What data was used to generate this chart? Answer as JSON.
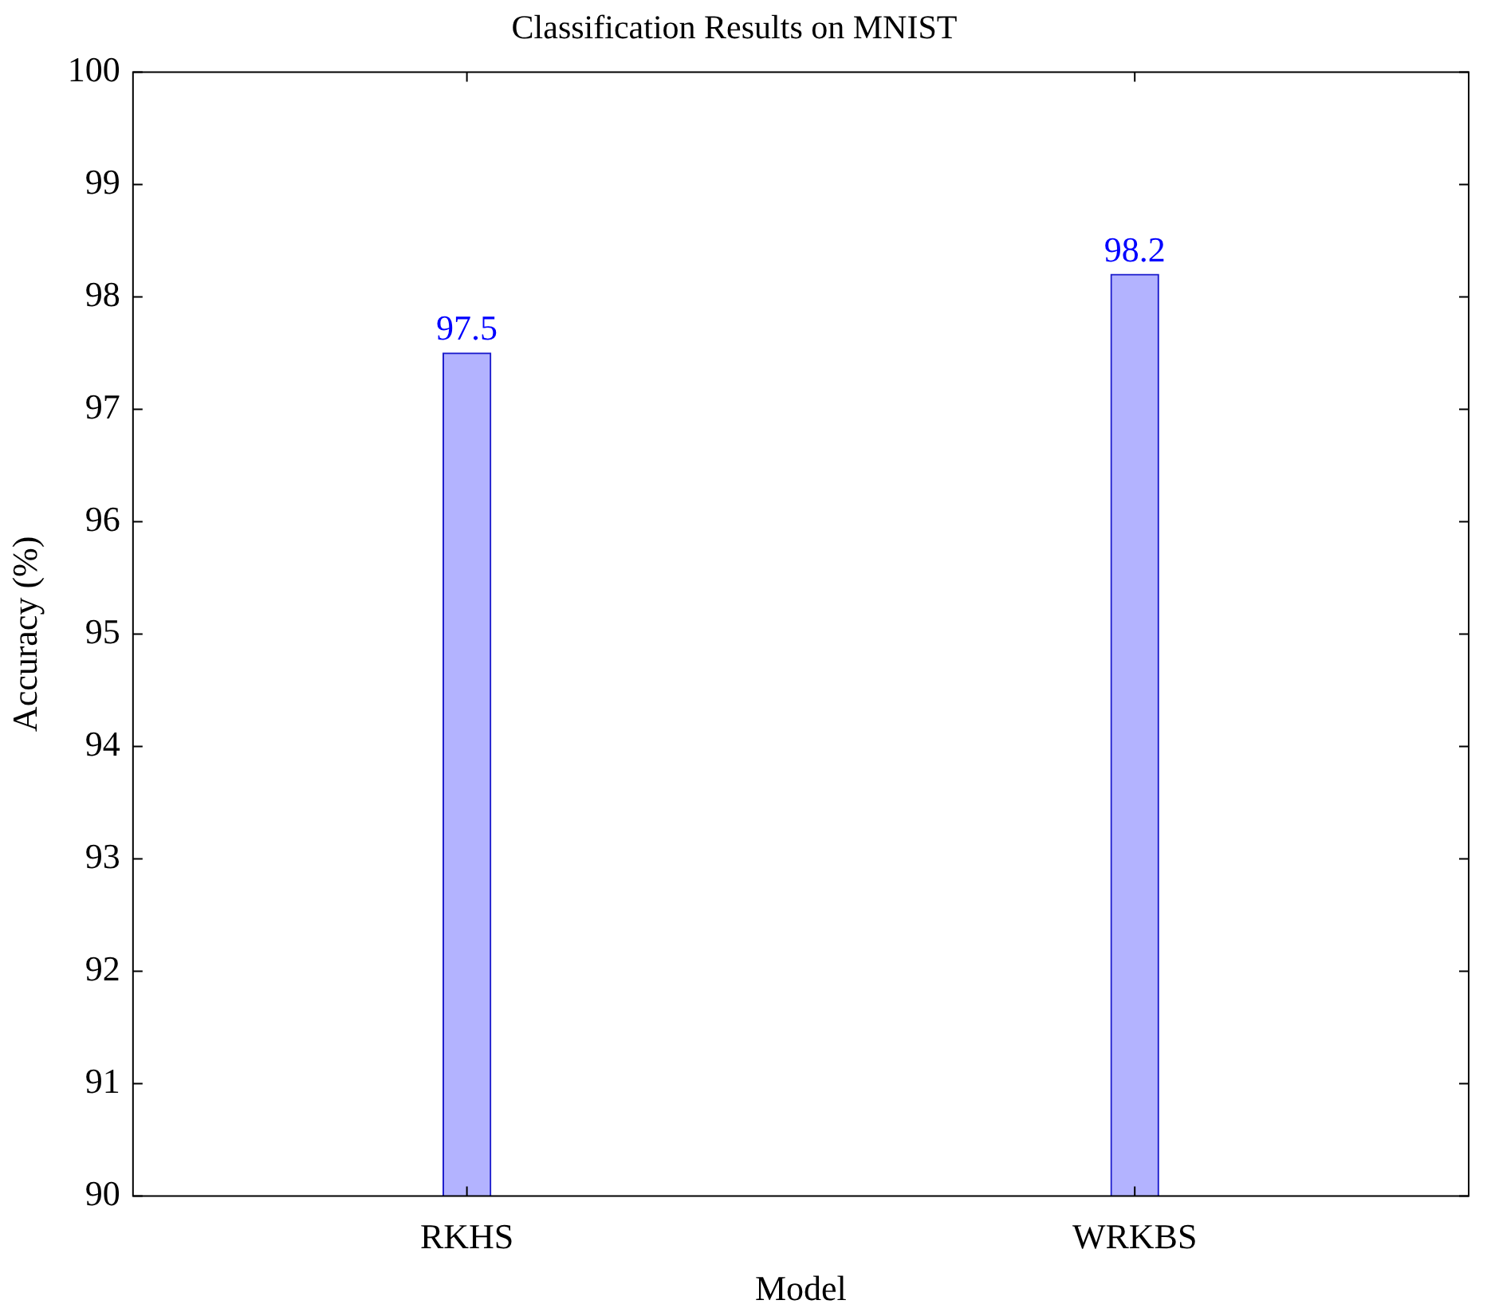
{
  "chart_data": {
    "type": "bar",
    "title": "Classification Results on MNIST",
    "xlabel": "Model",
    "ylabel": "Accuracy (%)",
    "categories": [
      "RKHS",
      "WRKBS"
    ],
    "values": [
      97.5,
      98.2
    ],
    "color": "#b3b3ff",
    "ylim": [
      90,
      100
    ],
    "yticks": [
      90,
      91,
      92,
      93,
      94,
      95,
      96,
      97,
      98,
      99,
      100
    ],
    "grid": false,
    "data_labels": true
  }
}
